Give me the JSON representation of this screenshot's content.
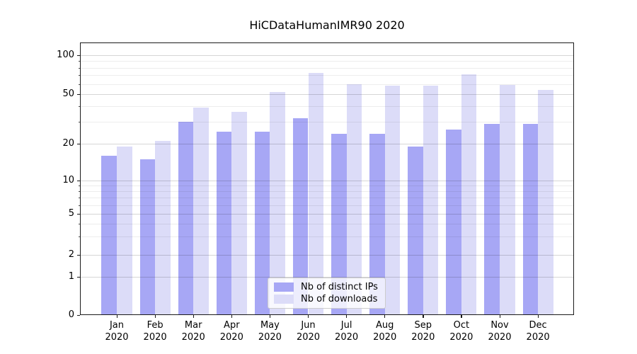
{
  "title": "HiCDataHumanIMR90 2020",
  "colors": {
    "bar_distinct_ips": "#a7a7f5",
    "bar_downloads": "#dcdcf8",
    "grid_major": "rgba(0,0,0,0.16)",
    "grid_minor": "rgba(0,0,0,0.07)",
    "spine": "#1a1a1a",
    "background": "#ffffff"
  },
  "y_axis": {
    "scale": "log-like (symlog, 0 at baseline)",
    "major_ticks": [
      {
        "label": "100",
        "value": 100
      },
      {
        "label": "50",
        "value": 50
      },
      {
        "label": "20",
        "value": 20
      },
      {
        "label": "10",
        "value": 10
      },
      {
        "label": "5",
        "value": 5
      },
      {
        "label": "2",
        "value": 2
      },
      {
        "label": "1",
        "value": 1
      },
      {
        "label": "0",
        "value": 0
      }
    ],
    "minor_tick_values": [
      3,
      4,
      6,
      7,
      8,
      9,
      30,
      40,
      60,
      70,
      80,
      90
    ]
  },
  "x_axis": {
    "year": "2020",
    "months": [
      "Jan",
      "Feb",
      "Mar",
      "Apr",
      "May",
      "Jun",
      "Jul",
      "Aug",
      "Sep",
      "Oct",
      "Nov",
      "Dec"
    ]
  },
  "legend": {
    "items": [
      {
        "label": "Nb of distinct IPs",
        "color": "#a7a7f5"
      },
      {
        "label": "Nb of downloads",
        "color": "#dcdcf8"
      }
    ]
  },
  "chart_data": {
    "type": "bar",
    "title": "HiCDataHumanIMR90 2020",
    "categories": [
      "Jan 2020",
      "Feb 2020",
      "Mar 2020",
      "Apr 2020",
      "May 2020",
      "Jun 2020",
      "Jul 2020",
      "Aug 2020",
      "Sep 2020",
      "Oct 2020",
      "Nov 2020",
      "Dec 2020"
    ],
    "series": [
      {
        "name": "Nb of distinct IPs",
        "values": [
          16,
          15,
          30,
          25,
          25,
          32,
          24,
          24,
          19,
          26,
          29,
          29
        ]
      },
      {
        "name": "Nb of downloads",
        "values": [
          19,
          21,
          39,
          36,
          52,
          73,
          60,
          58,
          58,
          71,
          59,
          54
        ]
      }
    ],
    "y_scale": "log",
    "y_ticks": [
      100,
      50,
      20,
      10,
      5,
      2,
      1,
      0
    ],
    "ylim": [
      0,
      125
    ],
    "grid": true,
    "legend_position": "lower center"
  }
}
